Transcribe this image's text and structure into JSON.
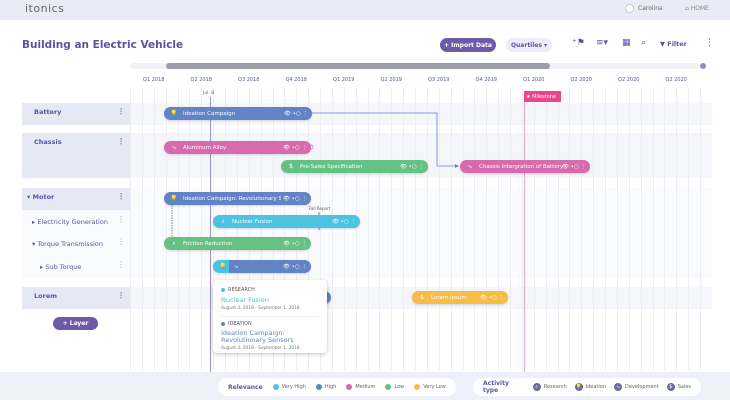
{
  "app": {
    "logo": "itonics",
    "user": "Carolina",
    "home": "HOME"
  },
  "header": {
    "title": "Building an Electric Vehicle",
    "import_label": "+ Import Data",
    "zoom_select": "Quartiles ▾",
    "filter_label": "Filter"
  },
  "timeline": {
    "quarters": [
      "Q1 2018",
      "Q2 2018",
      "Q3 2018",
      "Q4 2018",
      "Q1 2019",
      "Q2 2019",
      "Q3 2019",
      "Q4 2019",
      "Q1 2020",
      "Q2 2020",
      "Q2 2020",
      "Q2 2020"
    ],
    "today_label": "Jul. 8",
    "milestone_label": "★ Milestone",
    "report_label": "Fall Report"
  },
  "rows": {
    "battery": "Battery",
    "chassis": "Chassis",
    "motor": "▾ Motor",
    "elec": "▸ Electricity Generation",
    "torque": "▾ Torque Transmission",
    "subtorque": "▸ Sub Torque",
    "lorem": "Lorem"
  },
  "layer_button": "+ Layer",
  "bars": {
    "b1": "Ideation Campaign",
    "b2": "Aluminum Alloy",
    "b3": "Pre-Sales Specification",
    "b4": "Chassis Intergration of Battery",
    "b5": "Ideation Campaign: Revolutionary Se",
    "b6": "Nuclear Fusion",
    "b7": "Friction Reduction",
    "b9": "Lorem ipsum"
  },
  "tooltip": {
    "cat1": "RESEARCH",
    "name1": "Nuclear Fusion",
    "date1": "August 3, 2018 - September 1, 2018",
    "cat2": "IDEATION",
    "name2": "Ideation Campaign: Revolutionary Sensors",
    "date2": "August 3, 2018 - September 1, 2018"
  },
  "legend": {
    "relevance_title": "Relevance",
    "relevance": [
      "Very High",
      "High",
      "Medium",
      "Low",
      "Very Low"
    ],
    "activity_title": "Activity type",
    "activity": [
      "Research",
      "Ideation",
      "Development",
      "Sales"
    ]
  },
  "colors": {
    "very_high": "#4cc3e0",
    "high": "#6283c6",
    "medium": "#d66bae",
    "low": "#66c185",
    "very_low": "#f5bd45",
    "accent": "#5b54a1",
    "milestone": "#e8478b"
  }
}
